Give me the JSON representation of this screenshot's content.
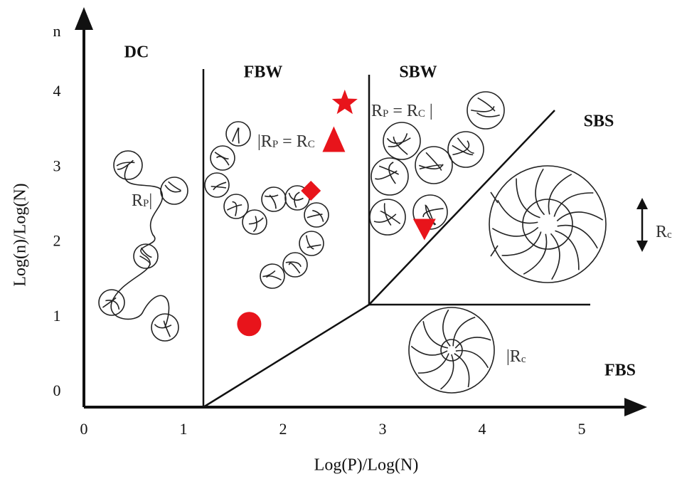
{
  "chart_data": {
    "type": "scatter",
    "x_label": "Log(P)/Log(N)",
    "y_label": "Log(n)/Log(N)",
    "xlim": [
      0,
      5.6
    ],
    "ylim": [
      -0.2,
      5.0
    ],
    "xticks": [
      0,
      1,
      2,
      3,
      4,
      5
    ],
    "yticks": [
      0,
      1,
      2,
      3,
      4,
      {
        "value": 4.8,
        "label": "n"
      }
    ],
    "color": "#e8141b",
    "x": [
      1.66,
      2.28,
      2.51,
      2.62,
      3.42
    ],
    "values": [
      0.91,
      2.69,
      3.36,
      3.86,
      2.2
    ],
    "markers": [
      "circle",
      "diamond",
      "triangle-up",
      "star",
      "triangle-down"
    ],
    "regions": [
      "DC",
      "FBW",
      "SBW",
      "SBS",
      "FBS"
    ],
    "annotations": [
      [
        "R",
        "P",
        "|"
      ],
      [
        "|R",
        "P",
        " = R",
        "C"
      ],
      [
        "R",
        "P",
        " = R",
        "C",
        " |"
      ],
      [
        "R",
        "c"
      ],
      [
        "|R",
        "c"
      ]
    ]
  }
}
